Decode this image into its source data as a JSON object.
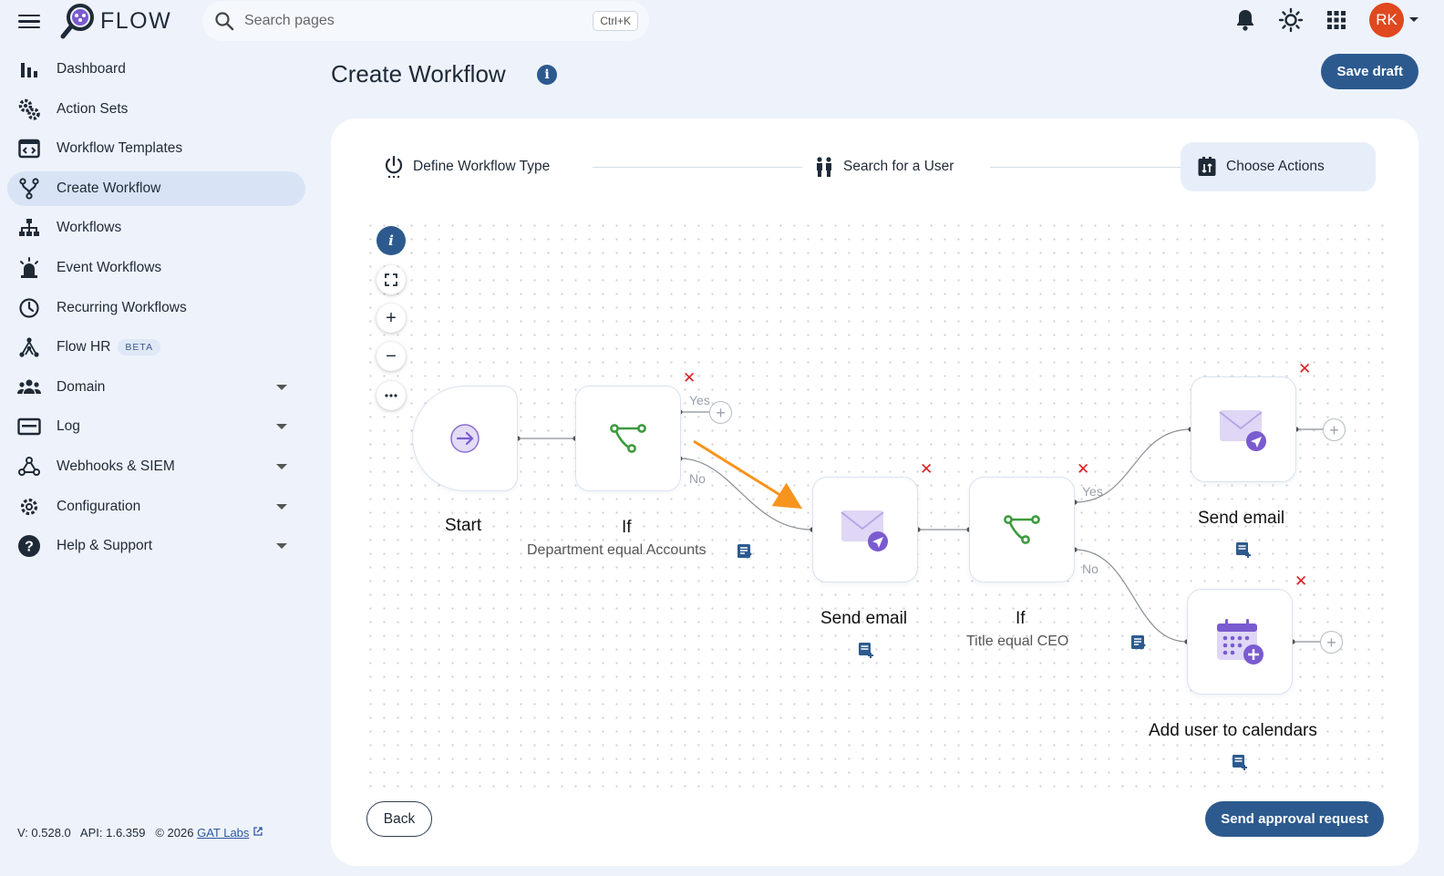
{
  "app": {
    "name": "FLOW"
  },
  "search": {
    "placeholder": "Search pages",
    "shortcut": "Ctrl+K"
  },
  "user": {
    "initials": "RK",
    "avatar_color": "#e0481f"
  },
  "colors": {
    "primary": "#2d5a8e",
    "active_nav": "#d8e3f6",
    "delete": "#d91f26",
    "condition_icon": "#3d9a3d",
    "arrow": "#f7941d"
  },
  "sidebar": {
    "items": [
      {
        "label": "Dashboard",
        "icon": "bar-chart-icon"
      },
      {
        "label": "Action Sets",
        "icon": "gear-cog-icon"
      },
      {
        "label": "Workflow Templates",
        "icon": "template-icon"
      },
      {
        "label": "Create Workflow",
        "icon": "branch-icon",
        "active": true
      },
      {
        "label": "Workflows",
        "icon": "sitemap-icon"
      },
      {
        "label": "Event Workflows",
        "icon": "alarm-icon"
      },
      {
        "label": "Recurring Workflows",
        "icon": "clock-icon"
      },
      {
        "label": "Flow HR",
        "icon": "hierarchy-icon",
        "badge": "BETA"
      },
      {
        "label": "Domain",
        "icon": "users-icon",
        "expandable": true
      },
      {
        "label": "Log",
        "icon": "log-icon",
        "expandable": true
      },
      {
        "label": "Webhooks & SIEM",
        "icon": "webhook-icon",
        "expandable": true
      },
      {
        "label": "Configuration",
        "icon": "settings-icon",
        "expandable": true
      },
      {
        "label": "Help & Support",
        "icon": "help-icon",
        "expandable": true
      }
    ]
  },
  "footer": {
    "version": "V: 0.528.0",
    "api": "API: 1.6.359",
    "copyright": "© 2026",
    "company": "GAT Labs"
  },
  "header": {
    "title": "Create Workflow",
    "save_draft": "Save draft"
  },
  "stepper": {
    "steps": [
      {
        "label": "Define Workflow Type",
        "icon": "power-icon"
      },
      {
        "label": "Search for a User",
        "icon": "people-icon"
      },
      {
        "label": "Choose Actions",
        "icon": "actions-icon",
        "active": true
      }
    ]
  },
  "workflow": {
    "nodes": {
      "start": {
        "label": "Start"
      },
      "if1": {
        "label": "If",
        "condition": "Department equal Accounts"
      },
      "email1": {
        "label": "Send email"
      },
      "if2": {
        "label": "If",
        "condition": "Title equal CEO"
      },
      "email2": {
        "label": "Send email"
      },
      "calendar": {
        "label": "Add user to calendars"
      }
    },
    "edge_labels": {
      "yes": "Yes",
      "no": "No"
    }
  },
  "buttons": {
    "back": "Back",
    "send_approval": "Send approval request"
  }
}
